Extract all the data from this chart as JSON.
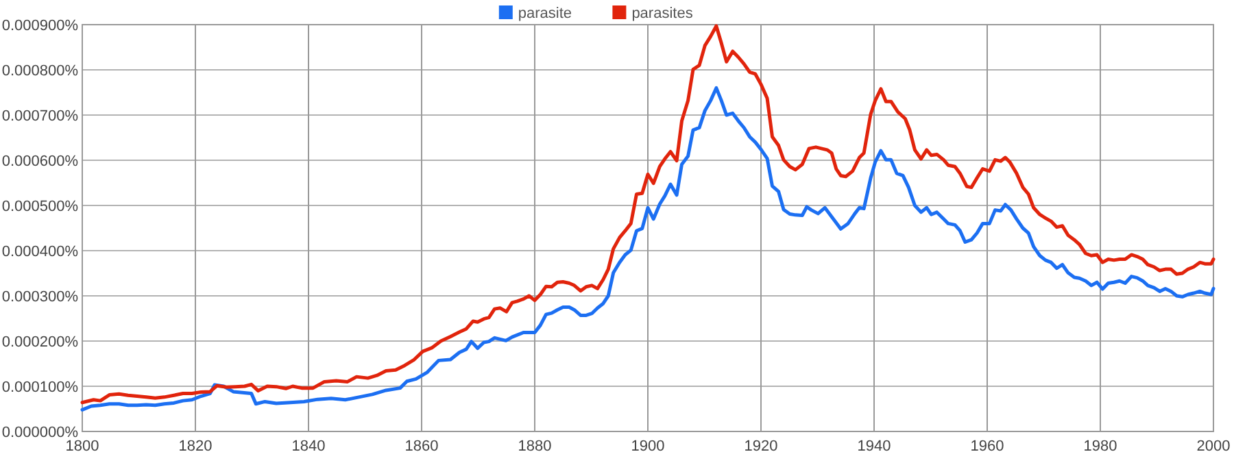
{
  "chart_data": {
    "type": "line",
    "xlim": [
      1800,
      2000
    ],
    "xticks": [
      1800,
      1820,
      1840,
      1860,
      1880,
      1900,
      1920,
      1940,
      1960,
      1980,
      2000
    ],
    "ylim": [
      0,
      0.0009
    ],
    "yticks": [
      {
        "value": 0,
        "label": "0.000000%"
      },
      {
        "value": 0.0001,
        "label": "0.000100%"
      },
      {
        "value": 0.0002,
        "label": "0.000200%"
      },
      {
        "value": 0.0003,
        "label": "0.000300%"
      },
      {
        "value": 0.0004,
        "label": "0.000400%"
      },
      {
        "value": 0.0005,
        "label": "0.000500%"
      },
      {
        "value": 0.0006,
        "label": "0.000600%"
      },
      {
        "value": 0.0007,
        "label": "0.000700%"
      },
      {
        "value": 0.0008,
        "label": "0.000800%"
      },
      {
        "value": 0.0009,
        "label": "0.000900%"
      }
    ],
    "grid": true,
    "legend": "top",
    "marker": "none",
    "line_style": "solid",
    "series": [
      {
        "name": "parasite",
        "color": "#1c6ff2",
        "x": [
          1800,
          1801.6,
          1803.2,
          1804.8,
          1806.5,
          1808.1,
          1809.7,
          1811.3,
          1812.9,
          1814.5,
          1816.2,
          1817.8,
          1819.4,
          1821,
          1822.6,
          1823.4,
          1825,
          1826.7,
          1828.3,
          1829.9,
          1830.7,
          1832.3,
          1834.3,
          1836.8,
          1839.2,
          1841.6,
          1844,
          1846.5,
          1848.9,
          1851.3,
          1853.7,
          1856.2,
          1857.4,
          1859,
          1861,
          1863,
          1865.1,
          1866.7,
          1867.9,
          1868.8,
          1869.9,
          1871,
          1871.9,
          1872.9,
          1874.9,
          1876,
          1878,
          1880,
          1881,
          1882,
          1883,
          1884,
          1885,
          1886.1,
          1887,
          1888.1,
          1889.1,
          1890.1,
          1891.1,
          1892.1,
          1893,
          1893.9,
          1895,
          1896,
          1897,
          1898,
          1899,
          1900,
          1901,
          1902.1,
          1903,
          1904,
          1905.1,
          1906,
          1907.1,
          1908,
          1909.1,
          1910.1,
          1911.1,
          1912.1,
          1913,
          1913.9,
          1915,
          1916,
          1917,
          1918,
          1919,
          1920,
          1921.1,
          1922,
          1923.1,
          1924,
          1925.1,
          1926.1,
          1927.3,
          1928.1,
          1928.9,
          1930.1,
          1931.3,
          1932.5,
          1933.7,
          1934.1,
          1935.4,
          1936.6,
          1937.4,
          1938.2,
          1939.4,
          1940.2,
          1941.2,
          1942.1,
          1943,
          1944,
          1945.1,
          1946.1,
          1947.2,
          1948.3,
          1949.3,
          1950.1,
          1951.1,
          1952.3,
          1953.1,
          1954.3,
          1955.2,
          1956.1,
          1957.2,
          1958.2,
          1959.2,
          1960.4,
          1961.4,
          1962.4,
          1963.2,
          1964.2,
          1965.2,
          1966.3,
          1967.3,
          1968.2,
          1969.3,
          1970.3,
          1971.3,
          1972.3,
          1973.3,
          1974.3,
          1975.4,
          1976.3,
          1977.4,
          1978.4,
          1979.4,
          1980.4,
          1981.4,
          1982.4,
          1983.4,
          1984.4,
          1985.5,
          1986.5,
          1987.5,
          1988.4,
          1989.5,
          1990.5,
          1991.5,
          1992.5,
          1993.5,
          1994.5,
          1995.5,
          1996.5,
          1997.6,
          1998.5,
          1999.6,
          2000
        ],
        "values": [
          4.8e-05,
          5.6e-05,
          5.8e-05,
          6.1e-05,
          6.1e-05,
          5.8e-05,
          5.8e-05,
          5.9e-05,
          5.8e-05,
          6.1e-05,
          6.3e-05,
          6.8e-05,
          7e-05,
          7.8e-05,
          8.4e-05,
          0.000103,
          0.0001,
          8.8e-05,
          8.6e-05,
          8.4e-05,
          6.1e-05,
          6.6e-05,
          6.2e-05,
          6.4e-05,
          6.6e-05,
          7.1e-05,
          7.3e-05,
          7e-05,
          7.6e-05,
          8.2e-05,
          9.1e-05,
          9.6e-05,
          0.000111,
          0.000116,
          0.000131,
          0.000157,
          0.000159,
          0.000175,
          0.000182,
          0.000199,
          0.000184,
          0.000197,
          0.000199,
          0.000207,
          0.000201,
          0.000209,
          0.000219,
          0.000219,
          0.000235,
          0.000259,
          0.000262,
          0.000269,
          0.000275,
          0.000275,
          0.000269,
          0.000257,
          0.000257,
          0.000261,
          0.000273,
          0.000283,
          0.0003,
          0.000351,
          0.000374,
          0.000391,
          0.000401,
          0.000444,
          0.000449,
          0.000495,
          0.00047,
          0.000503,
          0.000521,
          0.000547,
          0.000523,
          0.000591,
          0.000609,
          0.000667,
          0.000672,
          0.00071,
          0.000732,
          0.00076,
          0.000732,
          0.0007,
          0.000704,
          0.000687,
          0.000672,
          0.000652,
          0.00064,
          0.000624,
          0.000604,
          0.000543,
          0.000531,
          0.000491,
          0.000481,
          0.000479,
          0.000478,
          0.000497,
          0.00049,
          0.000482,
          0.000495,
          0.000475,
          0.000455,
          0.000448,
          0.00046,
          0.000482,
          0.000495,
          0.000493,
          0.000561,
          0.000596,
          0.000621,
          0.000601,
          0.000601,
          0.000571,
          0.000566,
          0.00054,
          0.0005,
          0.000485,
          0.000495,
          0.00048,
          0.000485,
          0.00047,
          0.00046,
          0.000457,
          0.000444,
          0.000419,
          0.000424,
          0.000439,
          0.00046,
          0.00046,
          0.00049,
          0.000488,
          0.000502,
          0.00049,
          0.00047,
          0.00045,
          0.000439,
          0.000409,
          0.000389,
          0.000379,
          0.000374,
          0.000361,
          0.000369,
          0.000351,
          0.000341,
          0.000339,
          0.000333,
          0.000323,
          0.00033,
          0.000315,
          0.000328,
          0.00033,
          0.000333,
          0.000328,
          0.000343,
          0.00034,
          0.000333,
          0.000323,
          0.000318,
          0.00031,
          0.000316,
          0.00031,
          0.0003,
          0.000298,
          0.000303,
          0.000306,
          0.00031,
          0.000306,
          0.000303,
          0.000316
        ]
      },
      {
        "name": "parasites",
        "color": "#e1240c",
        "x": [
          1800,
          1802,
          1803.2,
          1804.8,
          1806.5,
          1808.1,
          1809.7,
          1811.3,
          1812.9,
          1814.5,
          1816.2,
          1817.8,
          1819.4,
          1821,
          1822.6,
          1823.8,
          1825.5,
          1827.1,
          1828.7,
          1829.9,
          1831.1,
          1832.7,
          1834.3,
          1836,
          1837.2,
          1838.8,
          1840.8,
          1842.8,
          1844.9,
          1846.9,
          1848.5,
          1850.5,
          1852.1,
          1853.7,
          1855.4,
          1857,
          1858.6,
          1860.2,
          1861.8,
          1863.4,
          1865.1,
          1866.7,
          1867.9,
          1869.1,
          1869.9,
          1871,
          1871.9,
          1872.9,
          1873.9,
          1875,
          1876,
          1876.9,
          1878,
          1879,
          1880,
          1881,
          1882,
          1883,
          1884,
          1885,
          1886.1,
          1887,
          1888.1,
          1889.1,
          1890.1,
          1891.1,
          1892.1,
          1893,
          1893.9,
          1895,
          1896,
          1897,
          1898,
          1899,
          1900,
          1901,
          1902.1,
          1903,
          1904,
          1905.1,
          1906,
          1907.1,
          1908,
          1909.1,
          1910.1,
          1911.1,
          1912.1,
          1913,
          1913.9,
          1915,
          1916,
          1917,
          1918,
          1919,
          1920,
          1921.1,
          1922,
          1923.1,
          1924,
          1925.1,
          1926.1,
          1927.3,
          1928.5,
          1929.7,
          1931.7,
          1932.5,
          1933.3,
          1934.1,
          1935,
          1936.2,
          1937.4,
          1938.2,
          1939.4,
          1940.2,
          1941.2,
          1942.1,
          1943,
          1944.2,
          1945.5,
          1946.3,
          1947.2,
          1948.3,
          1949.3,
          1950.1,
          1951.1,
          1952.3,
          1953.1,
          1954.3,
          1955.2,
          1956.4,
          1957.2,
          1958.2,
          1959.2,
          1960.4,
          1961.4,
          1962.4,
          1963.2,
          1964,
          1965.2,
          1966.3,
          1967.3,
          1968.2,
          1969.3,
          1970.3,
          1971.3,
          1972.3,
          1973.3,
          1974.3,
          1975.4,
          1976.3,
          1977.4,
          1978.4,
          1979.4,
          1980.4,
          1981.4,
          1982.4,
          1983.4,
          1984.4,
          1985.5,
          1986.5,
          1987.5,
          1988.4,
          1989.5,
          1990.5,
          1991.5,
          1992.5,
          1993.5,
          1994.5,
          1995.5,
          1996.5,
          1997.6,
          1998.5,
          1999.6,
          2000
        ],
        "values": [
          6.4e-05,
          7e-05,
          6.8e-05,
          8.1e-05,
          8.3e-05,
          8e-05,
          7.8e-05,
          7.6e-05,
          7.4e-05,
          7.6e-05,
          8e-05,
          8.4e-05,
          8.4e-05,
          8.7e-05,
          8.8e-05,
          0.000101,
          9.8e-05,
          9.9e-05,
          0.0001,
          0.000104,
          9e-05,
          0.0001,
          9.9e-05,
          9.5e-05,
          0.0001,
          9.6e-05,
          9.6e-05,
          0.00011,
          0.000112,
          0.00011,
          0.000121,
          0.000118,
          0.000124,
          0.000134,
          0.000136,
          0.000146,
          0.000158,
          0.000177,
          0.000185,
          0.0002,
          0.00021,
          0.00022,
          0.000227,
          0.000244,
          0.000242,
          0.000249,
          0.000252,
          0.000271,
          0.000273,
          0.000265,
          0.000285,
          0.000288,
          0.000293,
          0.0003,
          0.00029,
          0.000303,
          0.000321,
          0.00032,
          0.00033,
          0.000331,
          0.000328,
          0.000323,
          0.000311,
          0.00032,
          0.000323,
          0.000316,
          0.000336,
          0.000359,
          0.000404,
          0.000429,
          0.000444,
          0.00046,
          0.000525,
          0.000527,
          0.000569,
          0.000549,
          0.000586,
          0.000603,
          0.000619,
          0.000599,
          0.000687,
          0.000732,
          0.000801,
          0.00081,
          0.000854,
          0.000874,
          0.000897,
          0.000859,
          0.000818,
          0.000841,
          0.000828,
          0.000813,
          0.000795,
          0.000791,
          0.000768,
          0.000737,
          0.000652,
          0.000633,
          0.000601,
          0.000586,
          0.000579,
          0.000591,
          0.000626,
          0.000629,
          0.000623,
          0.000616,
          0.000581,
          0.000566,
          0.000564,
          0.000576,
          0.000606,
          0.000616,
          0.000702,
          0.000732,
          0.000758,
          0.00073,
          0.00073,
          0.000707,
          0.000692,
          0.000667,
          0.000623,
          0.000603,
          0.000623,
          0.000611,
          0.000613,
          0.000601,
          0.000589,
          0.000586,
          0.000571,
          0.000542,
          0.00054,
          0.000561,
          0.000581,
          0.000576,
          0.000601,
          0.000598,
          0.000606,
          0.000596,
          0.000571,
          0.00054,
          0.000525,
          0.000495,
          0.00048,
          0.000472,
          0.000465,
          0.000452,
          0.000455,
          0.000434,
          0.000424,
          0.000414,
          0.000394,
          0.000389,
          0.000391,
          0.000374,
          0.000381,
          0.000379,
          0.000381,
          0.000381,
          0.000391,
          0.000387,
          0.000381,
          0.000369,
          0.000364,
          0.000356,
          0.000359,
          0.000359,
          0.000348,
          0.00035,
          0.000359,
          0.000364,
          0.000374,
          0.000371,
          0.000371,
          0.000381
        ]
      }
    ]
  }
}
